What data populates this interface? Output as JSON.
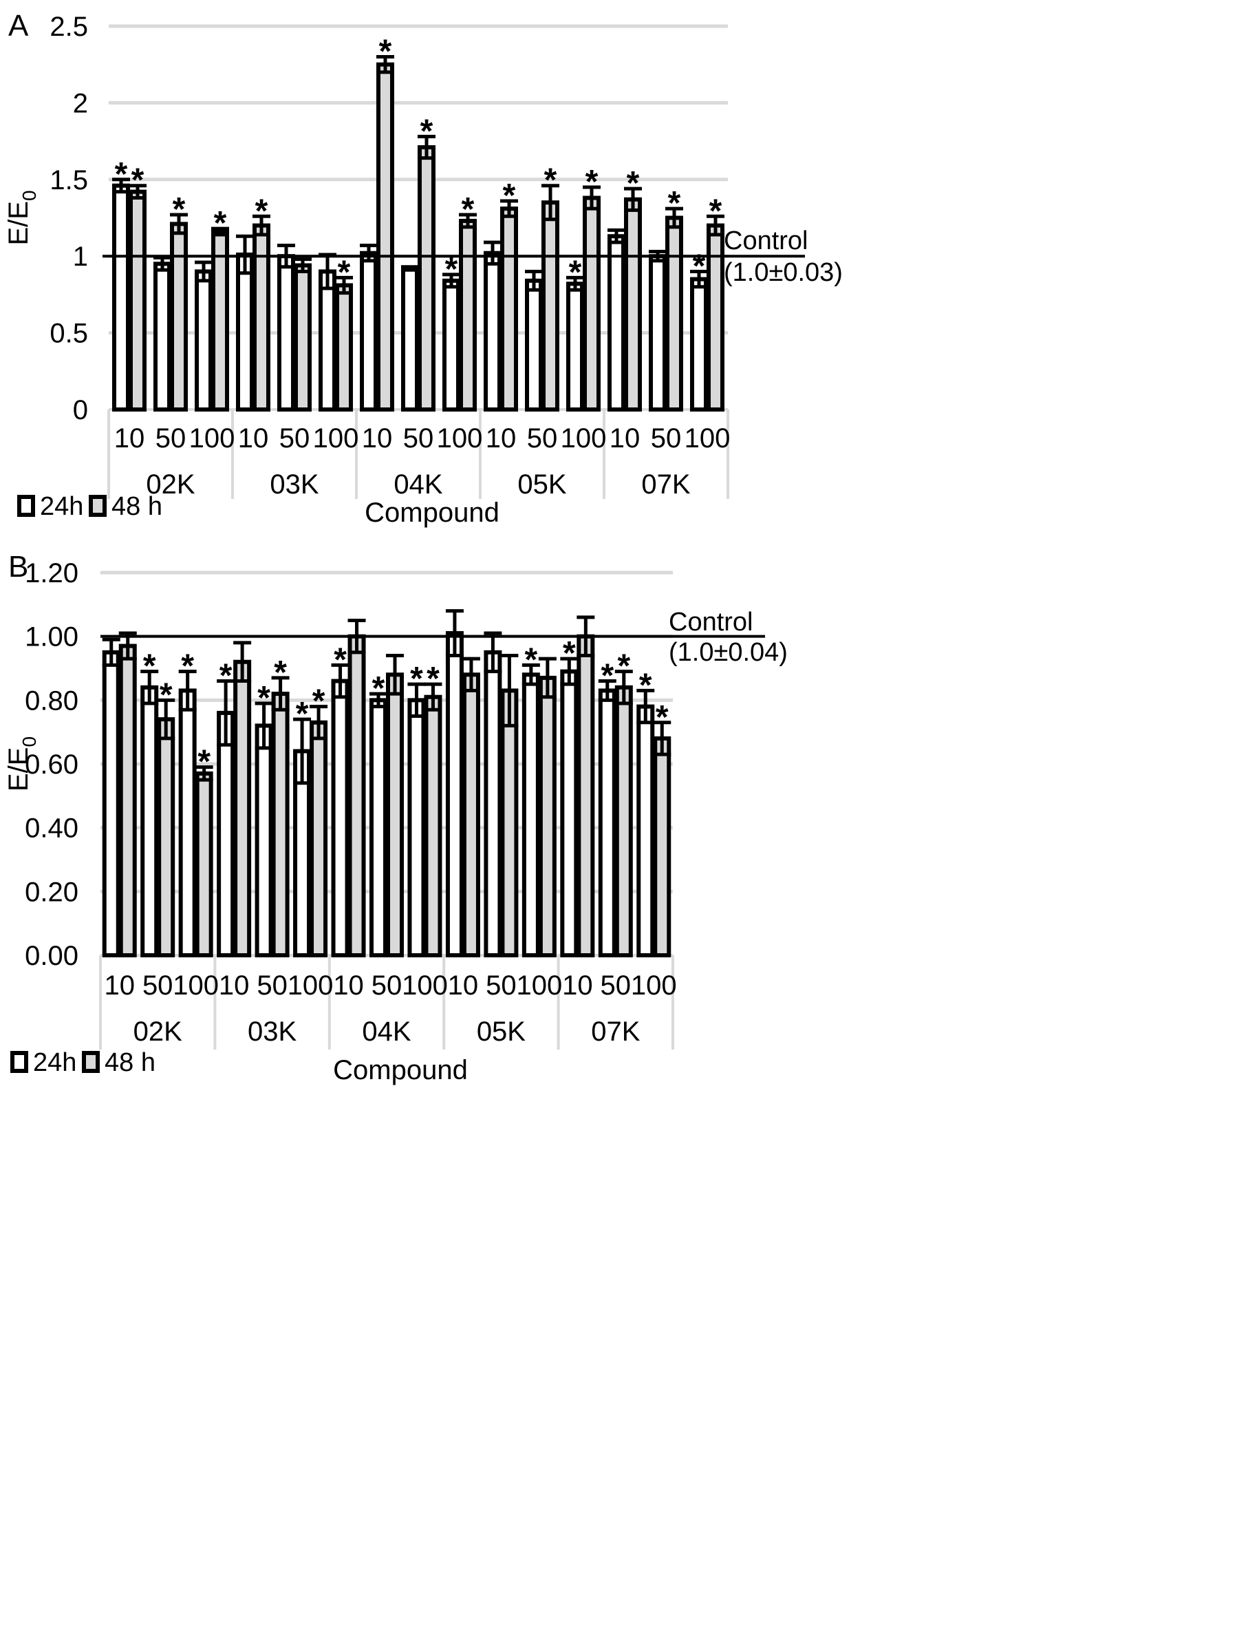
{
  "chart_data": [
    {
      "type": "bar",
      "panel": "A",
      "ylabel": "E/E0",
      "ylabel_main": "E/E",
      "ylabel_sub": "0",
      "xlabel": "Compound",
      "ylim": [
        0,
        2.5
      ],
      "yticks": [
        "0",
        "0.5",
        "1",
        "1.5",
        "2",
        "2.5"
      ],
      "ytick_values": [
        0,
        0.5,
        1,
        1.5,
        2,
        2.5
      ],
      "grid": true,
      "compounds": [
        "02K",
        "03K",
        "04K",
        "05K",
        "07K"
      ],
      "concentrations": [
        "10",
        "50",
        "100"
      ],
      "control": {
        "value": 1.0,
        "label": "Control",
        "label2": "(1.0±0.03)"
      },
      "legend": [
        "24h",
        "48 h"
      ],
      "series": [
        {
          "name": "24h",
          "color": "#ffffff",
          "values": [
            1.46,
            0.95,
            0.9,
            1.01,
            1.0,
            0.9,
            1.02,
            0.92,
            0.84,
            1.02,
            0.84,
            0.82,
            1.13,
            1.0,
            0.85
          ],
          "errors": [
            0.04,
            0.04,
            0.06,
            0.12,
            0.07,
            0.11,
            0.05,
            0.01,
            0.04,
            0.07,
            0.06,
            0.04,
            0.04,
            0.03,
            0.05
          ],
          "stars": [
            "*",
            "",
            "",
            "",
            "",
            "",
            "",
            "",
            "*",
            "",
            "",
            "*",
            "",
            "",
            "*"
          ]
        },
        {
          "name": "48 h",
          "color": "#d9d9d9",
          "values": [
            1.42,
            1.21,
            1.16,
            1.2,
            0.94,
            0.81,
            2.25,
            1.71,
            1.23,
            1.31,
            1.35,
            1.38,
            1.37,
            1.25,
            1.2
          ],
          "errors": [
            0.04,
            0.06,
            0.02,
            0.06,
            0.04,
            0.05,
            0.05,
            0.07,
            0.04,
            0.05,
            0.11,
            0.07,
            0.07,
            0.06,
            0.06
          ],
          "stars": [
            "*",
            "*",
            "*",
            "*",
            "",
            "*",
            "*",
            "*",
            "*",
            "*",
            "*",
            "*",
            "*",
            "*",
            "*"
          ]
        }
      ]
    },
    {
      "type": "bar",
      "panel": "B",
      "ylabel": "E/E0",
      "ylabel_main": "E/E",
      "ylabel_sub": "0",
      "xlabel": "Compound",
      "ylim": [
        0,
        1.2
      ],
      "yticks": [
        "0.00",
        "0.20",
        "0.40",
        "0.60",
        "0.80",
        "1.00",
        "1.20"
      ],
      "ytick_values": [
        0,
        0.2,
        0.4,
        0.6,
        0.8,
        1.0,
        1.2
      ],
      "grid": true,
      "compounds": [
        "02K",
        "03K",
        "04K",
        "05K",
        "07K"
      ],
      "concentrations": [
        "10",
        "50",
        "100"
      ],
      "control": {
        "value": 1.0,
        "label": "Control",
        "label2": "(1.0±0.04)"
      },
      "legend": [
        "24h",
        "48 h"
      ],
      "series": [
        {
          "name": "24h",
          "color": "#ffffff",
          "values": [
            0.95,
            0.84,
            0.83,
            0.76,
            0.72,
            0.64,
            0.86,
            0.8,
            0.8,
            1.01,
            0.95,
            0.88,
            0.89,
            0.83,
            0.78
          ],
          "errors": [
            0.04,
            0.05,
            0.06,
            0.1,
            0.07,
            0.1,
            0.05,
            0.02,
            0.05,
            0.07,
            0.06,
            0.03,
            0.04,
            0.03,
            0.05
          ],
          "stars": [
            "",
            "*",
            "*",
            "*",
            "*",
            "*",
            "*",
            "*",
            "*",
            "",
            "",
            "*",
            "*",
            "*",
            "*"
          ]
        },
        {
          "name": "48 h",
          "color": "#d9d9d9",
          "values": [
            0.97,
            0.74,
            0.57,
            0.92,
            0.82,
            0.73,
            1.0,
            0.88,
            0.81,
            0.88,
            0.83,
            0.87,
            1.0,
            0.84,
            0.68
          ],
          "errors": [
            0.04,
            0.06,
            0.02,
            0.06,
            0.05,
            0.05,
            0.05,
            0.06,
            0.04,
            0.05,
            0.11,
            0.06,
            0.06,
            0.05,
            0.05
          ],
          "stars": [
            "",
            "*",
            "*",
            "",
            "*",
            "*",
            "",
            "",
            "*",
            "",
            "",
            "",
            "",
            "*",
            "*"
          ]
        }
      ]
    }
  ]
}
